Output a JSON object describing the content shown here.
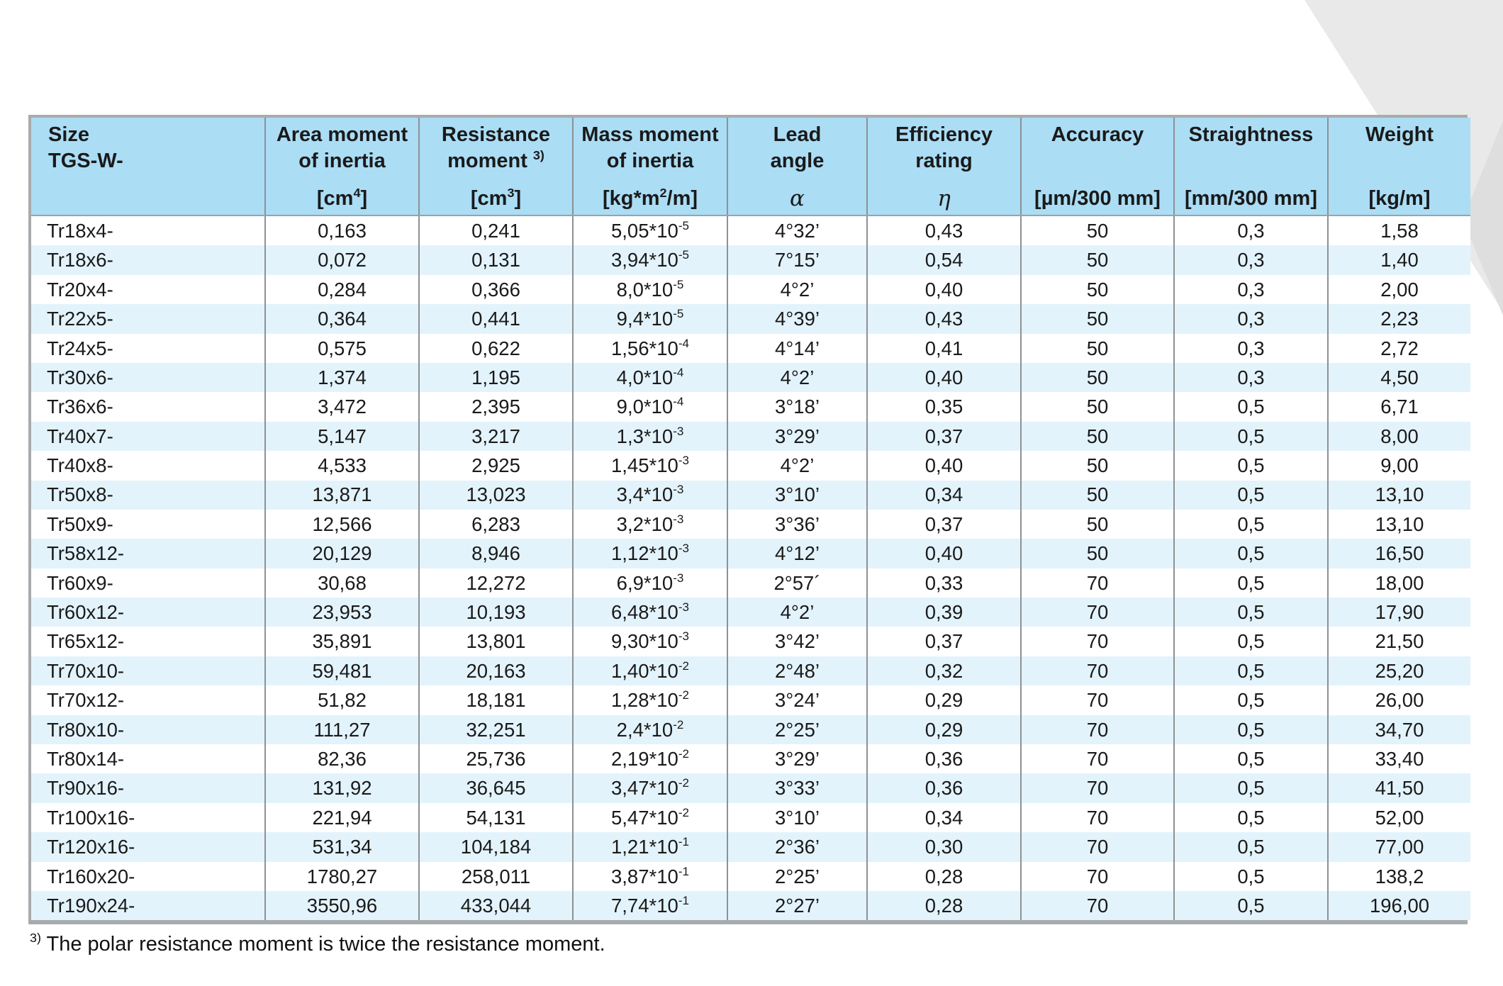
{
  "colors": {
    "header_bg": "#abddf5",
    "row_alt_bg": "#e3f3fc",
    "row_bg": "#ffffff",
    "outer_border": "#a8abae",
    "inner_border": "#8d9194",
    "text": "#1a1a1a",
    "corner_decoration_light": "#e9e9e9",
    "corner_decoration_dark": "#dedede"
  },
  "footnote": "^{3)} The polar resistance moment is twice the resistance moment.",
  "table": {
    "columns": [
      {
        "id": "size",
        "title_lines": [
          "Size",
          "TGS-W-"
        ],
        "unit": "",
        "greek": false
      },
      {
        "id": "area-moment",
        "title_lines": [
          "Area moment",
          "of inertia"
        ],
        "unit": "[cm^{4}]",
        "greek": false
      },
      {
        "id": "resistance",
        "title_lines": [
          "Resistance",
          "moment ^{3)}"
        ],
        "unit": "[cm^{3}]",
        "greek": false
      },
      {
        "id": "mass-moment",
        "title_lines": [
          "Mass moment",
          "of inertia"
        ],
        "unit": "[kg*m^{2}/m]",
        "greek": false
      },
      {
        "id": "lead-angle",
        "title_lines": [
          "Lead",
          "angle"
        ],
        "unit": "α",
        "greek": true
      },
      {
        "id": "efficiency",
        "title_lines": [
          "Efficiency",
          "rating"
        ],
        "unit": "η",
        "greek": true
      },
      {
        "id": "accuracy",
        "title_lines": [
          "Accuracy"
        ],
        "unit": "[µm/300 mm]",
        "greek": false
      },
      {
        "id": "straightness",
        "title_lines": [
          "Straightness"
        ],
        "unit": "[mm/300 mm]",
        "greek": false
      },
      {
        "id": "weight",
        "title_lines": [
          "Weight"
        ],
        "unit": "[kg/m]",
        "greek": false
      }
    ],
    "rows": [
      [
        "Tr18x4-",
        "0,163",
        "0,241",
        "5,05*10^{-5}",
        "4°32’",
        "0,43",
        "50",
        "0,3",
        "1,58"
      ],
      [
        "Tr18x6-",
        "0,072",
        "0,131",
        "3,94*10^{-5}",
        "7°15’",
        "0,54",
        "50",
        "0,3",
        "1,40"
      ],
      [
        "Tr20x4-",
        "0,284",
        "0,366",
        "8,0*10^{-5}",
        "4°2’",
        "0,40",
        "50",
        "0,3",
        "2,00"
      ],
      [
        "Tr22x5-",
        "0,364",
        "0,441",
        "9,4*10^{-5}",
        "4°39’",
        "0,43",
        "50",
        "0,3",
        "2,23"
      ],
      [
        "Tr24x5-",
        "0,575",
        "0,622",
        "1,56*10^{-4}",
        "4°14’",
        "0,41",
        "50",
        "0,3",
        "2,72"
      ],
      [
        "Tr30x6-",
        "1,374",
        "1,195",
        "4,0*10^{-4}",
        "4°2’",
        "0,40",
        "50",
        "0,3",
        "4,50"
      ],
      [
        "Tr36x6-",
        "3,472",
        "2,395",
        "9,0*10^{-4}",
        "3°18’",
        "0,35",
        "50",
        "0,5",
        "6,71"
      ],
      [
        "Tr40x7-",
        "5,147",
        "3,217",
        "1,3*10^{-3}",
        "3°29’",
        "0,37",
        "50",
        "0,5",
        "8,00"
      ],
      [
        "Tr40x8-",
        "4,533",
        "2,925",
        "1,45*10^{-3}",
        "4°2’",
        "0,40",
        "50",
        "0,5",
        "9,00"
      ],
      [
        "Tr50x8-",
        "13,871",
        "13,023",
        "3,4*10^{-3}",
        "3°10’",
        "0,34",
        "50",
        "0,5",
        "13,10"
      ],
      [
        "Tr50x9-",
        "12,566",
        "6,283",
        "3,2*10^{-3}",
        "3°36’",
        "0,37",
        "50",
        "0,5",
        "13,10"
      ],
      [
        "Tr58x12-",
        "20,129",
        "8,946",
        "1,12*10^{-3}",
        "4°12’",
        "0,40",
        "50",
        "0,5",
        "16,50"
      ],
      [
        "Tr60x9-",
        "30,68",
        "12,272",
        "6,9*10^{-3}",
        "2°57´",
        "0,33",
        "70",
        "0,5",
        "18,00"
      ],
      [
        "Tr60x12-",
        "23,953",
        "10,193",
        "6,48*10^{-3}",
        "4°2’",
        "0,39",
        "70",
        "0,5",
        "17,90"
      ],
      [
        "Tr65x12-",
        "35,891",
        "13,801",
        "9,30*10^{-3}",
        "3°42’",
        "0,37",
        "70",
        "0,5",
        "21,50"
      ],
      [
        "Tr70x10-",
        "59,481",
        "20,163",
        "1,40*10^{-2}",
        "2°48’",
        "0,32",
        "70",
        "0,5",
        "25,20"
      ],
      [
        "Tr70x12-",
        "51,82",
        "18,181",
        "1,28*10^{-2}",
        "3°24’",
        "0,29",
        "70",
        "0,5",
        "26,00"
      ],
      [
        "Tr80x10-",
        "111,27",
        "32,251",
        "2,4*10^{-2}",
        "2°25’",
        "0,29",
        "70",
        "0,5",
        "34,70"
      ],
      [
        "Tr80x14-",
        "82,36",
        "25,736",
        "2,19*10^{-2}",
        "3°29’",
        "0,36",
        "70",
        "0,5",
        "33,40"
      ],
      [
        "Tr90x16-",
        "131,92",
        "36,645",
        "3,47*10^{-2}",
        "3°33’",
        "0,36",
        "70",
        "0,5",
        "41,50"
      ],
      [
        "Tr100x16-",
        "221,94",
        "54,131",
        "5,47*10^{-2}",
        "3°10’",
        "0,34",
        "70",
        "0,5",
        "52,00"
      ],
      [
        "Tr120x16-",
        "531,34",
        "104,184",
        "1,21*10^{-1}",
        "2°36’",
        "0,30",
        "70",
        "0,5",
        "77,00"
      ],
      [
        "Tr160x20-",
        "1780,27",
        "258,011",
        "3,87*10^{-1}",
        "2°25’",
        "0,28",
        "70",
        "0,5",
        "138,2"
      ],
      [
        "Tr190x24-",
        "3550,96",
        "433,044",
        "7,74*10^{-1}",
        "2°27’",
        "0,28",
        "70",
        "0,5",
        "196,00"
      ]
    ]
  }
}
